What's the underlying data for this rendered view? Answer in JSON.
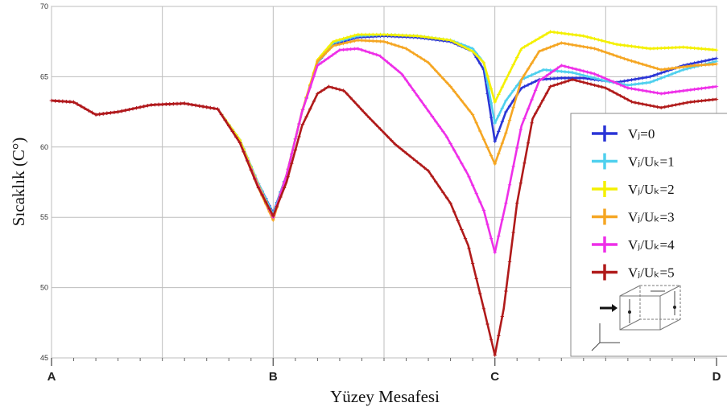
{
  "chart_data": {
    "type": "line",
    "xlabel": "Yüzey Mesafesi",
    "ylabel": "Sıcaklık (C°)",
    "x_categories": [
      "A",
      "B",
      "C",
      "D"
    ],
    "xlim": [
      0,
      3
    ],
    "ylim": [
      45,
      70
    ],
    "yticks": [
      45,
      50,
      55,
      60,
      65,
      70
    ],
    "grid": true,
    "legend_position": "right",
    "series": [
      {
        "name": "Vⱼ=0",
        "color": "#2b35d6",
        "points": [
          [
            0,
            63.3
          ],
          [
            0.1,
            63.2
          ],
          [
            0.2,
            62.3
          ],
          [
            0.3,
            62.5
          ],
          [
            0.45,
            63.0
          ],
          [
            0.6,
            63.1
          ],
          [
            0.75,
            62.7
          ],
          [
            0.85,
            60.5
          ],
          [
            0.93,
            57.5
          ],
          [
            1.0,
            55.3
          ],
          [
            1.06,
            58.0
          ],
          [
            1.13,
            62.5
          ],
          [
            1.2,
            66.0
          ],
          [
            1.27,
            67.3
          ],
          [
            1.38,
            67.8
          ],
          [
            1.5,
            67.9
          ],
          [
            1.65,
            67.8
          ],
          [
            1.8,
            67.5
          ],
          [
            1.9,
            66.8
          ],
          [
            1.95,
            65.5
          ],
          [
            2.0,
            60.4
          ],
          [
            2.05,
            62.5
          ],
          [
            2.12,
            64.2
          ],
          [
            2.2,
            64.8
          ],
          [
            2.3,
            64.9
          ],
          [
            2.4,
            64.9
          ],
          [
            2.55,
            64.6
          ],
          [
            2.7,
            65.0
          ],
          [
            2.85,
            65.8
          ],
          [
            3.0,
            66.3
          ]
        ]
      },
      {
        "name": "Vⱼ/Uₖ=1",
        "color": "#4fd0ee",
        "points": [
          [
            0,
            63.3
          ],
          [
            0.1,
            63.2
          ],
          [
            0.2,
            62.3
          ],
          [
            0.3,
            62.5
          ],
          [
            0.45,
            63.0
          ],
          [
            0.6,
            63.1
          ],
          [
            0.75,
            62.7
          ],
          [
            0.85,
            60.5
          ],
          [
            0.93,
            57.5
          ],
          [
            1.0,
            55.2
          ],
          [
            1.06,
            58.0
          ],
          [
            1.13,
            62.5
          ],
          [
            1.2,
            66.0
          ],
          [
            1.27,
            67.4
          ],
          [
            1.38,
            67.9
          ],
          [
            1.5,
            68.0
          ],
          [
            1.65,
            67.9
          ],
          [
            1.8,
            67.6
          ],
          [
            1.9,
            67.0
          ],
          [
            1.95,
            66.0
          ],
          [
            2.0,
            61.7
          ],
          [
            2.05,
            63.3
          ],
          [
            2.12,
            64.8
          ],
          [
            2.22,
            65.5
          ],
          [
            2.35,
            65.3
          ],
          [
            2.5,
            64.7
          ],
          [
            2.6,
            64.4
          ],
          [
            2.7,
            64.6
          ],
          [
            2.85,
            65.5
          ],
          [
            3.0,
            66.1
          ]
        ]
      },
      {
        "name": "Vⱼ/Uₖ=2",
        "color": "#f4f000",
        "points": [
          [
            0,
            63.3
          ],
          [
            0.1,
            63.2
          ],
          [
            0.2,
            62.3
          ],
          [
            0.3,
            62.5
          ],
          [
            0.45,
            63.0
          ],
          [
            0.6,
            63.1
          ],
          [
            0.75,
            62.7
          ],
          [
            0.85,
            60.5
          ],
          [
            0.93,
            57.4
          ],
          [
            1.0,
            55.0
          ],
          [
            1.06,
            58.0
          ],
          [
            1.13,
            62.5
          ],
          [
            1.2,
            66.2
          ],
          [
            1.27,
            67.5
          ],
          [
            1.38,
            68.0
          ],
          [
            1.5,
            68.0
          ],
          [
            1.65,
            67.9
          ],
          [
            1.8,
            67.6
          ],
          [
            1.9,
            66.8
          ],
          [
            1.95,
            66.0
          ],
          [
            2.0,
            63.2
          ],
          [
            2.05,
            64.8
          ],
          [
            2.12,
            67.0
          ],
          [
            2.25,
            68.2
          ],
          [
            2.4,
            67.9
          ],
          [
            2.55,
            67.3
          ],
          [
            2.7,
            67.0
          ],
          [
            2.85,
            67.1
          ],
          [
            3.0,
            66.9
          ]
        ]
      },
      {
        "name": "Vⱼ/Uₖ=3",
        "color": "#f5a623",
        "points": [
          [
            0,
            63.3
          ],
          [
            0.1,
            63.2
          ],
          [
            0.2,
            62.3
          ],
          [
            0.3,
            62.5
          ],
          [
            0.45,
            63.0
          ],
          [
            0.6,
            63.1
          ],
          [
            0.75,
            62.7
          ],
          [
            0.85,
            60.3
          ],
          [
            0.93,
            57.2
          ],
          [
            1.0,
            54.8
          ],
          [
            1.06,
            58.0
          ],
          [
            1.13,
            62.5
          ],
          [
            1.2,
            66.1
          ],
          [
            1.27,
            67.2
          ],
          [
            1.38,
            67.6
          ],
          [
            1.5,
            67.5
          ],
          [
            1.6,
            67.0
          ],
          [
            1.7,
            66.0
          ],
          [
            1.8,
            64.3
          ],
          [
            1.9,
            62.3
          ],
          [
            2.0,
            58.8
          ],
          [
            2.05,
            61.0
          ],
          [
            2.12,
            64.8
          ],
          [
            2.2,
            66.8
          ],
          [
            2.3,
            67.4
          ],
          [
            2.45,
            67.0
          ],
          [
            2.6,
            66.2
          ],
          [
            2.75,
            65.5
          ],
          [
            2.9,
            65.8
          ],
          [
            3.0,
            65.9
          ]
        ]
      },
      {
        "name": "Vⱼ/Uₖ=4",
        "color": "#ee2fe8",
        "points": [
          [
            0,
            63.3
          ],
          [
            0.1,
            63.2
          ],
          [
            0.2,
            62.3
          ],
          [
            0.3,
            62.5
          ],
          [
            0.45,
            63.0
          ],
          [
            0.6,
            63.1
          ],
          [
            0.75,
            62.7
          ],
          [
            0.85,
            60.3
          ],
          [
            0.93,
            57.3
          ],
          [
            1.0,
            55.0
          ],
          [
            1.06,
            58.0
          ],
          [
            1.13,
            62.5
          ],
          [
            1.2,
            65.8
          ],
          [
            1.3,
            66.9
          ],
          [
            1.38,
            67.0
          ],
          [
            1.48,
            66.5
          ],
          [
            1.58,
            65.2
          ],
          [
            1.68,
            63.0
          ],
          [
            1.78,
            60.8
          ],
          [
            1.88,
            58.0
          ],
          [
            1.95,
            55.5
          ],
          [
            2.0,
            52.5
          ],
          [
            2.05,
            56.0
          ],
          [
            2.12,
            61.5
          ],
          [
            2.2,
            64.7
          ],
          [
            2.3,
            65.8
          ],
          [
            2.45,
            65.2
          ],
          [
            2.6,
            64.2
          ],
          [
            2.75,
            63.8
          ],
          [
            2.9,
            64.1
          ],
          [
            3.0,
            64.3
          ]
        ]
      },
      {
        "name": "Vⱼ/Uₖ=5",
        "color": "#b01a1a",
        "points": [
          [
            0,
            63.3
          ],
          [
            0.1,
            63.2
          ],
          [
            0.2,
            62.3
          ],
          [
            0.3,
            62.5
          ],
          [
            0.45,
            63.0
          ],
          [
            0.6,
            63.1
          ],
          [
            0.75,
            62.7
          ],
          [
            0.85,
            60.3
          ],
          [
            0.93,
            57.2
          ],
          [
            1.0,
            55.1
          ],
          [
            1.06,
            57.5
          ],
          [
            1.13,
            61.5
          ],
          [
            1.2,
            63.8
          ],
          [
            1.25,
            64.3
          ],
          [
            1.32,
            64.0
          ],
          [
            1.42,
            62.3
          ],
          [
            1.55,
            60.2
          ],
          [
            1.7,
            58.3
          ],
          [
            1.8,
            56.0
          ],
          [
            1.88,
            53.0
          ],
          [
            1.95,
            48.5
          ],
          [
            2.0,
            45.2
          ],
          [
            2.04,
            48.5
          ],
          [
            2.1,
            56.0
          ],
          [
            2.17,
            62.0
          ],
          [
            2.25,
            64.3
          ],
          [
            2.35,
            64.8
          ],
          [
            2.5,
            64.2
          ],
          [
            2.62,
            63.2
          ],
          [
            2.75,
            62.8
          ],
          [
            2.88,
            63.2
          ],
          [
            3.0,
            63.4
          ]
        ]
      }
    ]
  }
}
